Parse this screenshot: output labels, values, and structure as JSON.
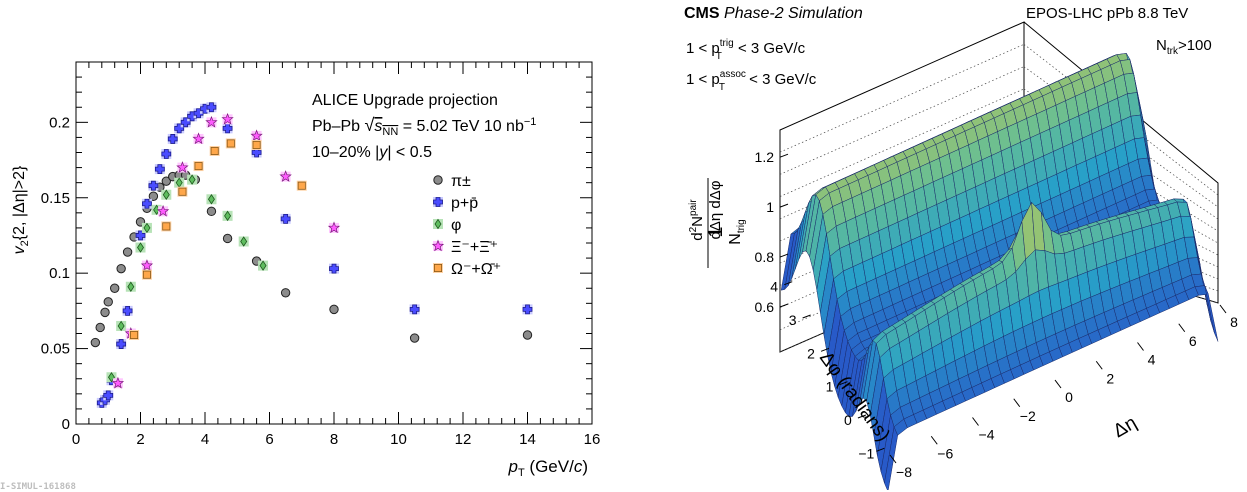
{
  "watermark": "I-SIMUL-161868",
  "chart_data": [
    {
      "type": "scatter",
      "title": "",
      "xlabel": "p_T (GeV/c)",
      "ylabel": "v_2{2, |Δη|>2}",
      "xlim": [
        0,
        16
      ],
      "ylim": [
        0,
        0.24
      ],
      "xticks": [
        0,
        2,
        4,
        6,
        8,
        10,
        12,
        14,
        16
      ],
      "yticks": [
        0,
        0.05,
        0.1,
        0.15,
        0.2
      ],
      "ytick_labels": [
        "0",
        "0.05",
        "0.1",
        "0.15",
        "0.2"
      ],
      "annotations": [
        "ALICE Upgrade projection",
        "Pb–Pb √sNN = 5.02 TeV   10 nb⁻¹",
        "10–20%      |y| < 0.5"
      ],
      "legend_position": "right",
      "series": [
        {
          "name": "π±",
          "marker": "circle",
          "color": "#8c8c8c",
          "x": [
            0.6,
            0.75,
            0.9,
            1.0,
            1.2,
            1.4,
            1.6,
            1.8,
            2.0,
            2.2,
            2.4,
            2.6,
            2.8,
            3.0,
            3.2,
            3.4,
            3.7,
            4.2,
            4.7,
            5.6,
            6.5,
            8.0,
            10.5,
            14.0
          ],
          "y": [
            0.054,
            0.064,
            0.074,
            0.081,
            0.09,
            0.103,
            0.114,
            0.124,
            0.134,
            0.143,
            0.151,
            0.157,
            0.161,
            0.164,
            0.165,
            0.165,
            0.162,
            0.141,
            0.123,
            0.108,
            0.087,
            0.076,
            0.057,
            0.059
          ]
        },
        {
          "name": "p+p̄",
          "marker": "cross-square",
          "color": "#4a4cff",
          "x": [
            0.8,
            0.9,
            1.0,
            1.1,
            1.4,
            1.6,
            2.0,
            2.2,
            2.4,
            2.6,
            2.8,
            3.0,
            3.2,
            3.4,
            3.6,
            3.8,
            4.0,
            4.2,
            4.7,
            5.6,
            6.5,
            8.0,
            10.5,
            14.0
          ],
          "y": [
            0.014,
            0.016,
            0.019,
            0.029,
            0.053,
            0.075,
            0.125,
            0.146,
            0.158,
            0.169,
            0.179,
            0.189,
            0.196,
            0.2,
            0.204,
            0.206,
            0.209,
            0.21,
            0.196,
            0.18,
            0.136,
            0.103,
            0.076,
            0.076
          ]
        },
        {
          "name": "φ",
          "marker": "diamond",
          "color": "#5fbd5f",
          "x": [
            1.1,
            1.4,
            1.7,
            2.0,
            2.2,
            2.5,
            2.8,
            3.2,
            3.6,
            4.2,
            4.7,
            5.2,
            5.8
          ],
          "y": [
            0.031,
            0.065,
            0.091,
            0.117,
            0.13,
            0.142,
            0.152,
            0.16,
            0.162,
            0.149,
            0.138,
            0.121,
            0.105
          ]
        },
        {
          "name": "Ξ⁻+Ξ̄⁺",
          "marker": "star",
          "color": "#ff5cff",
          "x": [
            1.3,
            1.7,
            2.2,
            2.7,
            3.3,
            3.8,
            4.2,
            4.7,
            5.6,
            6.5,
            8.0
          ],
          "y": [
            0.027,
            0.06,
            0.105,
            0.141,
            0.17,
            0.189,
            0.2,
            0.202,
            0.191,
            0.164,
            0.13
          ]
        },
        {
          "name": "Ω⁻+Ω̄⁺",
          "marker": "square",
          "color": "#ffa74a",
          "x": [
            1.8,
            2.2,
            2.8,
            3.3,
            3.8,
            4.3,
            4.8,
            5.6,
            7.0
          ],
          "y": [
            0.059,
            0.099,
            0.131,
            0.154,
            0.171,
            0.181,
            0.186,
            0.185,
            0.158
          ]
        }
      ]
    },
    {
      "type": "surface",
      "title": "CMS Phase-2 Simulation",
      "header_right": "EPOS-LHC pPb 8.8 TeV",
      "multiplicity": "N_trk>100",
      "cuts": [
        "1 < p_T^trig < 3 GeV/c",
        "1 < p_T^assoc < 3 GeV/c"
      ],
      "xlabel": "Δη",
      "ylabel": "Δφ (radians)",
      "zlabel": "1/N_trig d²N^pair/dΔη dΔφ",
      "xticks": [
        -8,
        -6,
        -4,
        -2,
        0,
        2,
        4,
        6,
        8
      ],
      "yticks": [
        -1,
        0,
        1,
        2,
        3,
        4
      ],
      "zticks": [
        0.6,
        0.8,
        1.0,
        1.2
      ],
      "ztick_labels": [
        "0.6",
        "0.8",
        "1",
        "1.2"
      ],
      "zlim": [
        0.5,
        1.3
      ],
      "description_values": {
        "near_side_peak_at": "Δη≈0, Δφ≈0",
        "away_side_ridge_at": "Δφ≈π"
      }
    }
  ]
}
